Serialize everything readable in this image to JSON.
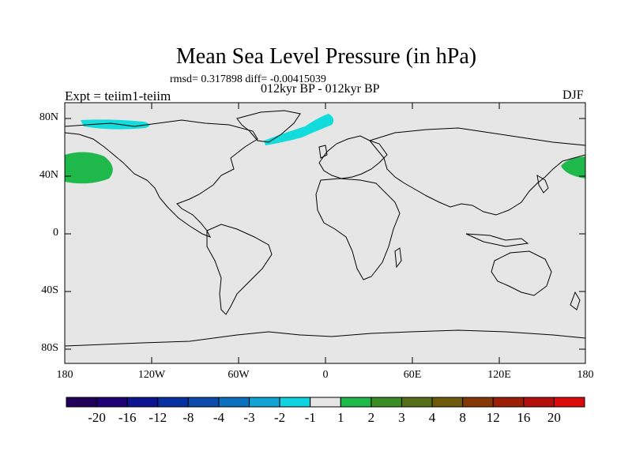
{
  "title": "Mean Sea Level Pressure (in hPa)",
  "stats": "rmsd= 0.317898 diff= -0.00415039",
  "subtitle": "012kyr BP - 012kyr BP",
  "experiment": "Expt = teiim1-teiim",
  "season": "DJF",
  "map": {
    "background": "#e6e6e6",
    "lat_ticks": [
      "80N",
      "40N",
      "0",
      "40S",
      "80S"
    ],
    "lon_ticks": [
      "180",
      "120W",
      "60W",
      "0",
      "60E",
      "120E",
      "180"
    ],
    "anomaly_regions": [
      {
        "name": "North Pacific positive",
        "level": "1 to 2",
        "color": "#1fb84a"
      },
      {
        "name": "Arctic negative (Canada)",
        "level": "-2 to -1",
        "color": "#13dcdc"
      },
      {
        "name": "Arctic negative (Greenland-Barents)",
        "level": "-2 to -1",
        "color": "#13dcdc"
      }
    ]
  },
  "colorbar": {
    "labels": [
      "-20",
      "-16",
      "-12",
      "-8",
      "-4",
      "-3",
      "-2",
      "-1",
      "1",
      "2",
      "3",
      "4",
      "8",
      "12",
      "16",
      "20"
    ],
    "colors": [
      "#22005a",
      "#1e0077",
      "#0c158f",
      "#0730a0",
      "#0a4aaa",
      "#0a70bd",
      "#10a3d3",
      "#11d2e0",
      "#e6e6e6",
      "#1fb84a",
      "#3a8c25",
      "#556f17",
      "#6d5a0b",
      "#833805",
      "#9a1f06",
      "#b40f0c",
      "#dc0a0a"
    ]
  }
}
